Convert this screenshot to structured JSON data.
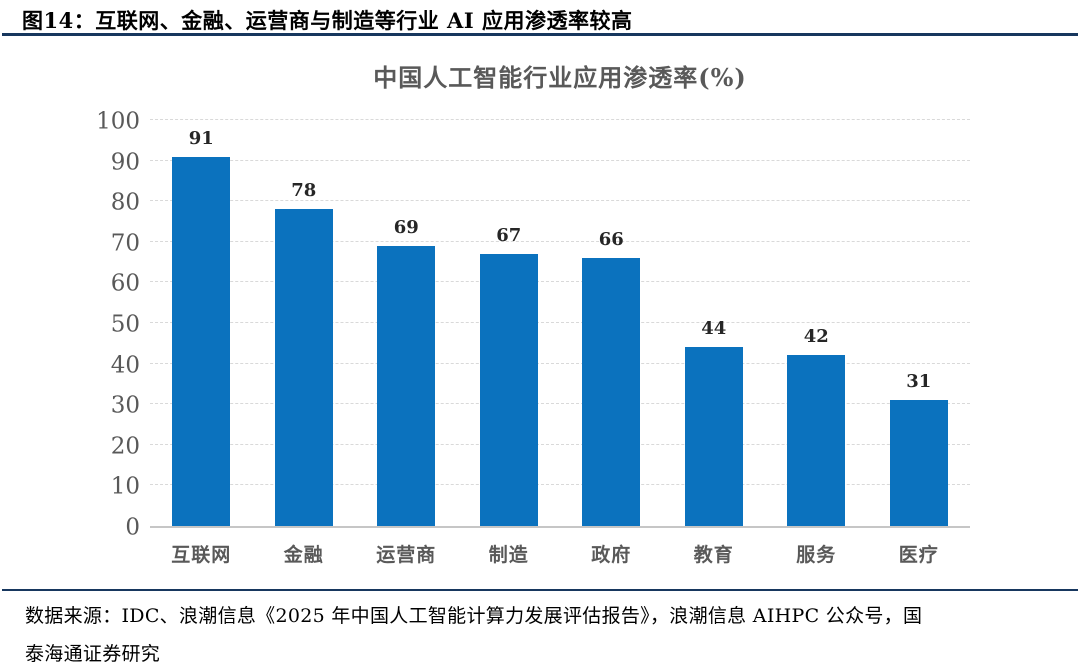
{
  "figure": {
    "header": "图14：互联网、金融、运营商与制造等行业 AI 应用渗透率较高",
    "source_lines": [
      "数据来源：IDC、浪潮信息《2025 年中国人工智能计算力发展评估报告》，浪潮信息 AIHPC 公众号，国",
      "泰海通证券研究"
    ]
  },
  "chart_data": {
    "type": "bar",
    "title": "中国人工智能行业应用渗透率(%)",
    "categories": [
      "互联网",
      "金融",
      "运营商",
      "制造",
      "政府",
      "教育",
      "服务",
      "医疗"
    ],
    "values": [
      91,
      78,
      69,
      67,
      66,
      44,
      42,
      31
    ],
    "xlabel": "",
    "ylabel": "",
    "ylim": [
      0,
      100
    ],
    "ytick_interval": 10,
    "yticks": [
      0,
      10,
      20,
      30,
      40,
      50,
      60,
      70,
      80,
      90,
      100
    ],
    "grid": "horizontal-dashed",
    "legend": "none",
    "colors": {
      "bar": "#0b72be",
      "grid": "#d9d9d9",
      "axis_line": "#c6c6c6",
      "axis_text": "#595959",
      "value_label": "#262626",
      "title_text": "#595959",
      "rule": "#17375e"
    }
  }
}
